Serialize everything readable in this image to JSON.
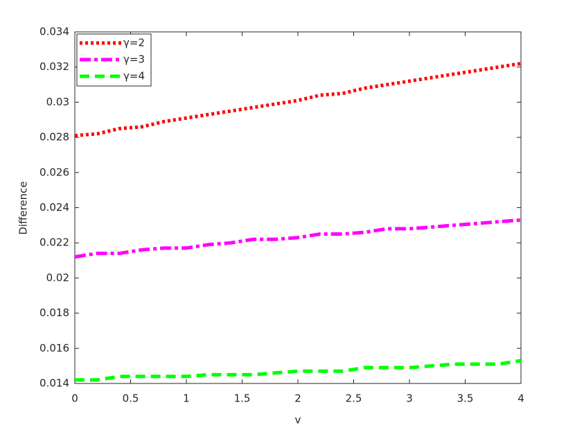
{
  "chart_data": {
    "type": "line",
    "x_label": "v",
    "y_label": "Difference",
    "x": [
      0,
      0.2,
      0.4,
      0.6,
      0.8,
      1,
      1.2,
      1.4,
      1.6,
      1.8,
      2,
      2.2,
      2.4,
      2.6,
      2.8,
      3,
      3.2,
      3.4,
      3.6,
      3.8,
      4
    ],
    "series": [
      {
        "name": "γ=2",
        "color": "#ff0000",
        "linestyle": "dotted",
        "values": [
          0.0281,
          0.0282,
          0.0285,
          0.0286,
          0.0289,
          0.0291,
          0.0293,
          0.0295,
          0.0297,
          0.0299,
          0.0301,
          0.0304,
          0.0305,
          0.0308,
          0.031,
          0.0312,
          0.0314,
          0.0316,
          0.0318,
          0.032,
          0.0322
        ]
      },
      {
        "name": "γ=3",
        "color": "#ff00ff",
        "linestyle": "dashdot",
        "values": [
          0.0212,
          0.0214,
          0.0214,
          0.0216,
          0.0217,
          0.0217,
          0.0219,
          0.022,
          0.0222,
          0.0222,
          0.0223,
          0.0225,
          0.0225,
          0.0226,
          0.0228,
          0.0228,
          0.0229,
          0.023,
          0.0231,
          0.0232,
          0.0233
        ]
      },
      {
        "name": "γ=4",
        "color": "#00ff00",
        "linestyle": "dashed",
        "values": [
          0.0142,
          0.0142,
          0.0144,
          0.0144,
          0.0144,
          0.0144,
          0.0145,
          0.0145,
          0.0145,
          0.0146,
          0.0147,
          0.0147,
          0.0147,
          0.0149,
          0.0149,
          0.0149,
          0.015,
          0.0151,
          0.0151,
          0.0151,
          0.0153
        ]
      }
    ],
    "xlim": [
      0,
      4
    ],
    "xticks": [
      0,
      0.5,
      1,
      1.5,
      2,
      2.5,
      3,
      3.5,
      4
    ],
    "ylim": [
      0.014,
      0.034
    ],
    "yticks": [
      0.014,
      0.016,
      0.018,
      0.02,
      0.022,
      0.024,
      0.026,
      0.028,
      0.03,
      0.032,
      0.034
    ],
    "legend": "top-left",
    "grid": false
  }
}
